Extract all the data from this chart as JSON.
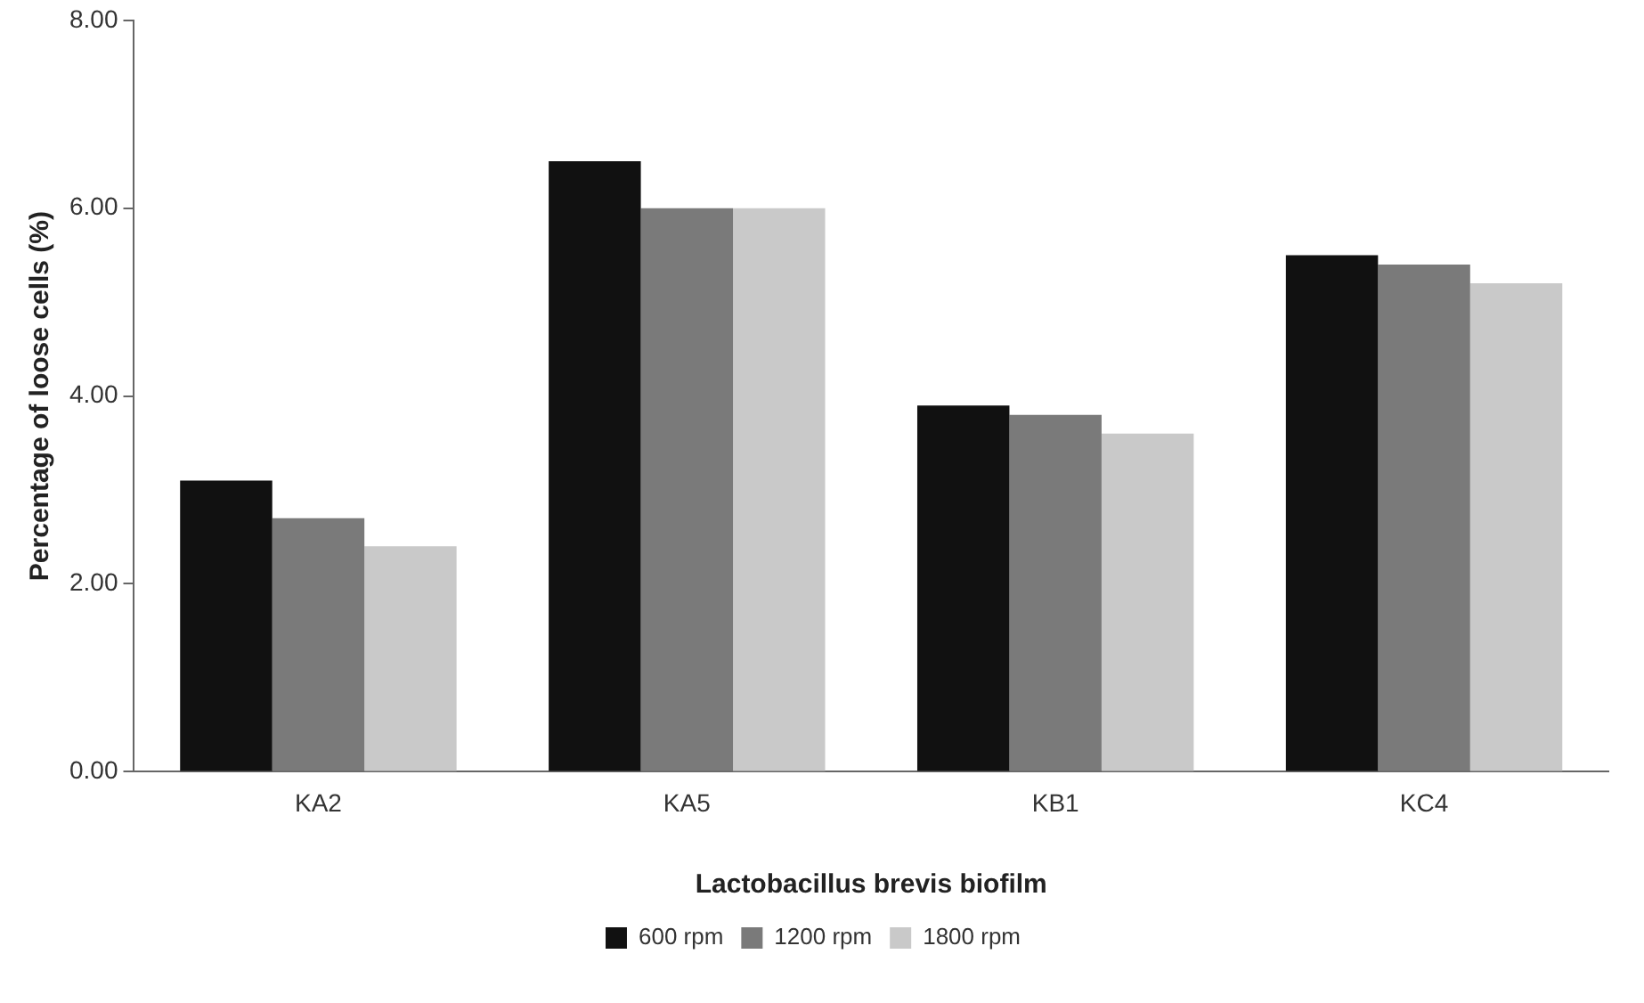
{
  "chart_data": {
    "type": "bar",
    "xlabel": "Lactobacillus brevis biofilm",
    "ylabel": "Percentage of loose cells (%)",
    "categories": [
      "KA2",
      "KA5",
      "KB1",
      "KC4"
    ],
    "series": [
      {
        "name": "600 rpm",
        "color": "#111111",
        "values": [
          3.1,
          6.5,
          3.9,
          5.5
        ]
      },
      {
        "name": "1200 rpm",
        "color": "#7a7a7a",
        "values": [
          2.7,
          6.0,
          3.8,
          5.4
        ]
      },
      {
        "name": "1800 rpm",
        "color": "#c9c9c9",
        "values": [
          2.4,
          6.0,
          3.6,
          5.2
        ]
      }
    ],
    "ylim": [
      0,
      8
    ],
    "yticks": [
      {
        "value": 0,
        "label": "0.00"
      },
      {
        "value": 2,
        "label": "2.00"
      },
      {
        "value": 4,
        "label": "4.00"
      },
      {
        "value": 6,
        "label": "6.00"
      },
      {
        "value": 8,
        "label": "8.00"
      }
    ],
    "grid": false,
    "legend": "bottom"
  }
}
